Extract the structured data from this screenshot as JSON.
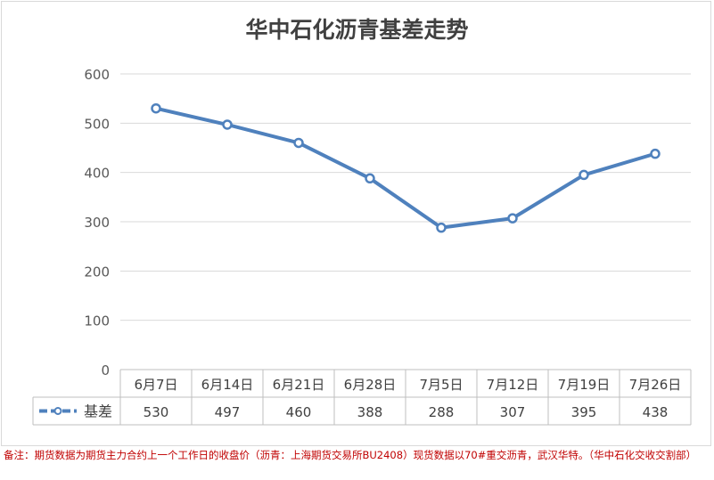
{
  "chart_data": {
    "type": "line",
    "title": "华中石化沥青基差走势",
    "categories": [
      "6月7日",
      "6月14日",
      "6月21日",
      "6月28日",
      "7月5日",
      "7月12日",
      "7月19日",
      "7月26日"
    ],
    "series": [
      {
        "name": "基差",
        "values": [
          530,
          497,
          460,
          388,
          288,
          307,
          395,
          438
        ]
      }
    ],
    "yticks": [
      "0",
      "100",
      "200",
      "300",
      "400",
      "500",
      "600"
    ],
    "ylim": [
      0,
      600
    ],
    "grid": true,
    "legend": "data-table-left",
    "line_color": "#4f81bd"
  },
  "note": "备注：期货数据为期货主力合约上一个工作日的收盘价（沥青：上海期货交易所BU2408）现货数据以70#重交沥青，武汉华特。（华中石化交收交割部）"
}
